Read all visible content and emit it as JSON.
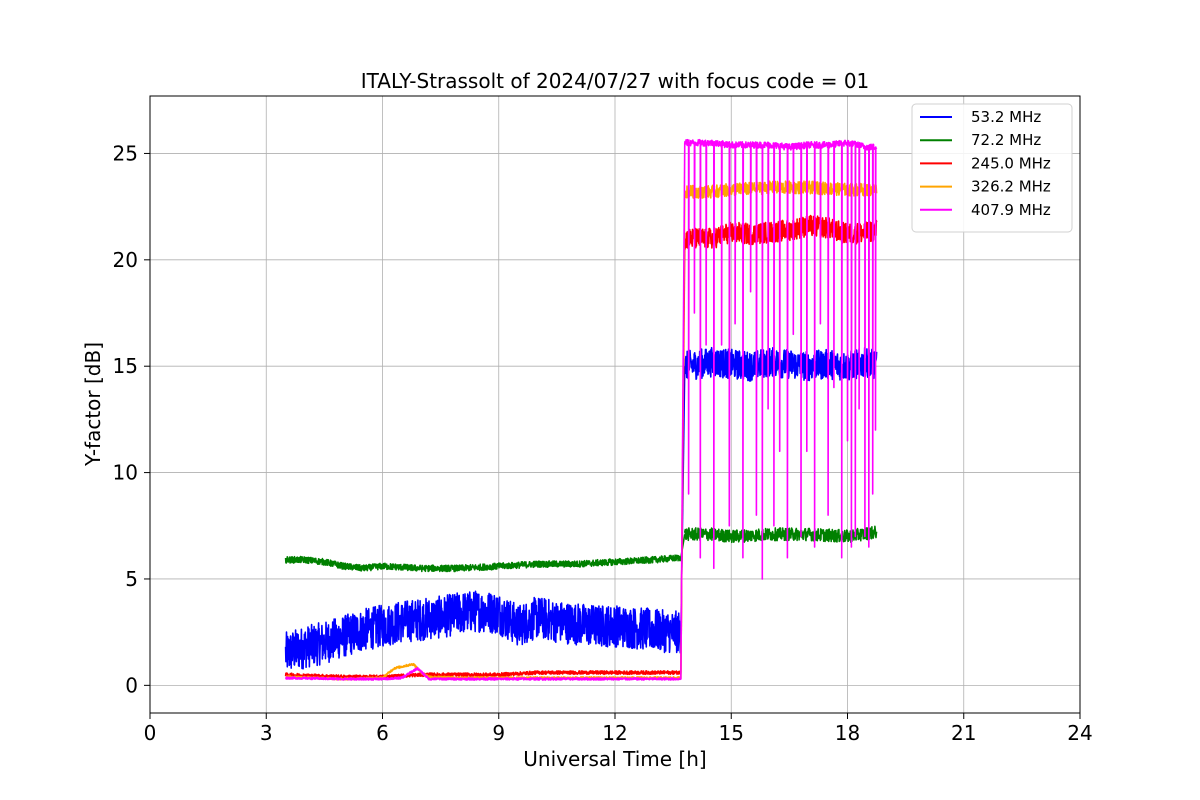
{
  "chart_data": {
    "type": "line",
    "title": "ITALY-Strassolt of 2024/07/27 with focus code = 01",
    "xlabel": "Universal Time [h]",
    "ylabel": "Y-factor [dB]",
    "xlim": [
      0,
      24
    ],
    "ylim": [
      -1.3,
      27.7
    ],
    "x_ticks": [
      0,
      3,
      6,
      9,
      12,
      15,
      18,
      21,
      24
    ],
    "y_ticks": [
      0,
      5,
      10,
      15,
      20,
      25
    ],
    "grid": true,
    "legend_position": "top-right",
    "series": [
      {
        "name": "53.2 MHz",
        "color": "#0000ff",
        "segments": [
          {
            "x": [
              3.5,
              4.0,
              4.5,
              5.0,
              5.5,
              6.0,
              6.5,
              7.0,
              7.5,
              8.0,
              8.5,
              9.0,
              9.5,
              10.0,
              10.5,
              11.0,
              11.5,
              12.0,
              12.5,
              13.0,
              13.5,
              13.7
            ],
            "y": [
              1.5,
              1.8,
              2.0,
              2.3,
              2.6,
              2.8,
              3.0,
              3.1,
              3.2,
              3.4,
              3.5,
              3.4,
              2.8,
              3.2,
              3.0,
              2.9,
              2.8,
              2.8,
              2.7,
              2.6,
              2.5,
              2.5
            ],
            "noise": 1.0
          },
          {
            "x": [
              13.8,
              14.5,
              15.0,
              15.5,
              16.0,
              16.5,
              17.0,
              17.5,
              18.0,
              18.5,
              18.75
            ],
            "y": [
              15.0,
              15.2,
              15.1,
              15.0,
              15.2,
              15.1,
              15.0,
              15.1,
              15.0,
              15.2,
              15.0
            ],
            "noise": 0.7
          }
        ]
      },
      {
        "name": "72.2 MHz",
        "color": "#008000",
        "segments": [
          {
            "x": [
              3.5,
              4.0,
              4.5,
              5.0,
              5.5,
              6.0,
              7.0,
              8.0,
              9.0,
              10.0,
              11.0,
              12.0,
              13.0,
              13.7
            ],
            "y": [
              5.9,
              5.9,
              5.8,
              5.6,
              5.5,
              5.6,
              5.5,
              5.5,
              5.6,
              5.7,
              5.7,
              5.8,
              5.9,
              6.0
            ],
            "noise": 0.15
          },
          {
            "x": [
              13.8,
              14.5,
              15.0,
              16.0,
              17.0,
              18.0,
              18.75
            ],
            "y": [
              7.1,
              7.1,
              7.0,
              7.1,
              7.1,
              7.0,
              7.2
            ],
            "noise": 0.3
          }
        ]
      },
      {
        "name": "245.0 MHz",
        "color": "#ff0000",
        "segments": [
          {
            "x": [
              3.5,
              5.0,
              6.0,
              7.0,
              8.0,
              9.0,
              10.0,
              11.0,
              12.0,
              13.0,
              13.7
            ],
            "y": [
              0.5,
              0.4,
              0.4,
              0.5,
              0.5,
              0.5,
              0.6,
              0.6,
              0.6,
              0.6,
              0.6
            ],
            "noise": 0.08
          },
          {
            "x": [
              13.8,
              14.5,
              15.0,
              15.5,
              16.0,
              16.5,
              17.0,
              17.5,
              18.0,
              18.5,
              18.75
            ],
            "y": [
              21.0,
              21.0,
              21.3,
              21.2,
              21.3,
              21.4,
              21.6,
              21.5,
              21.2,
              21.3,
              21.4
            ],
            "noise": 0.5
          }
        ]
      },
      {
        "name": "326.2 MHz",
        "color": "#ffa500",
        "segments": [
          {
            "x": [
              3.5,
              5.0,
              6.0,
              6.3,
              6.8,
              7.0,
              7.2,
              8.0,
              9.0,
              10.0,
              11.0,
              12.0,
              13.0,
              13.7
            ],
            "y": [
              0.4,
              0.3,
              0.35,
              0.8,
              1.0,
              0.6,
              0.4,
              0.35,
              0.35,
              0.35,
              0.35,
              0.35,
              0.35,
              0.35
            ],
            "noise": 0.05
          },
          {
            "x": [
              13.8,
              14.5,
              15.0,
              16.0,
              17.0,
              18.0,
              18.75
            ],
            "y": [
              23.2,
              23.2,
              23.3,
              23.4,
              23.4,
              23.3,
              23.3
            ],
            "noise": 0.3
          }
        ]
      },
      {
        "name": "407.9 MHz",
        "color": "#ff00ff",
        "segments": [
          {
            "x": [
              3.5,
              5.0,
              6.0,
              6.5,
              6.9,
              7.2,
              8.0,
              9.0,
              10.0,
              11.0,
              12.0,
              13.0,
              13.7
            ],
            "y": [
              0.35,
              0.3,
              0.3,
              0.35,
              0.8,
              0.3,
              0.3,
              0.3,
              0.3,
              0.3,
              0.3,
              0.3,
              0.3
            ],
            "noise": 0.05
          },
          {
            "x": [
              13.8,
              14.5,
              15.0,
              15.5,
              16.0,
              16.5,
              17.0,
              17.5,
              18.0,
              18.5,
              18.75
            ],
            "y": [
              25.5,
              25.5,
              25.4,
              25.4,
              25.4,
              25.3,
              25.4,
              25.4,
              25.5,
              25.3,
              25.3
            ],
            "noise": 0.15,
            "dips": [
              [
                13.75,
                6.5
              ],
              [
                13.9,
                9.0
              ],
              [
                14.05,
                17.5
              ],
              [
                14.2,
                6.0
              ],
              [
                14.35,
                16.0
              ],
              [
                14.55,
                5.5
              ],
              [
                14.75,
                16.0
              ],
              [
                14.95,
                7.5
              ],
              [
                15.1,
                17.0
              ],
              [
                15.3,
                6.0
              ],
              [
                15.5,
                18.5
              ],
              [
                15.65,
                8.0
              ],
              [
                15.8,
                5.0
              ],
              [
                15.95,
                13.0
              ],
              [
                16.1,
                7.5
              ],
              [
                16.25,
                11.0
              ],
              [
                16.45,
                6.0
              ],
              [
                16.6,
                16.5
              ],
              [
                16.8,
                7.0
              ],
              [
                16.95,
                11.0
              ],
              [
                17.15,
                6.5
              ],
              [
                17.3,
                17.0
              ],
              [
                17.5,
                8.0
              ],
              [
                17.65,
                14.0
              ],
              [
                17.85,
                6.0
              ],
              [
                18.0,
                11.5
              ],
              [
                18.1,
                6.5
              ],
              [
                18.2,
                7.0
              ],
              [
                18.3,
                13.0
              ],
              [
                18.45,
                7.0
              ],
              [
                18.55,
                6.5
              ],
              [
                18.65,
                9.0
              ],
              [
                18.72,
                12.0
              ]
            ]
          }
        ]
      }
    ]
  }
}
